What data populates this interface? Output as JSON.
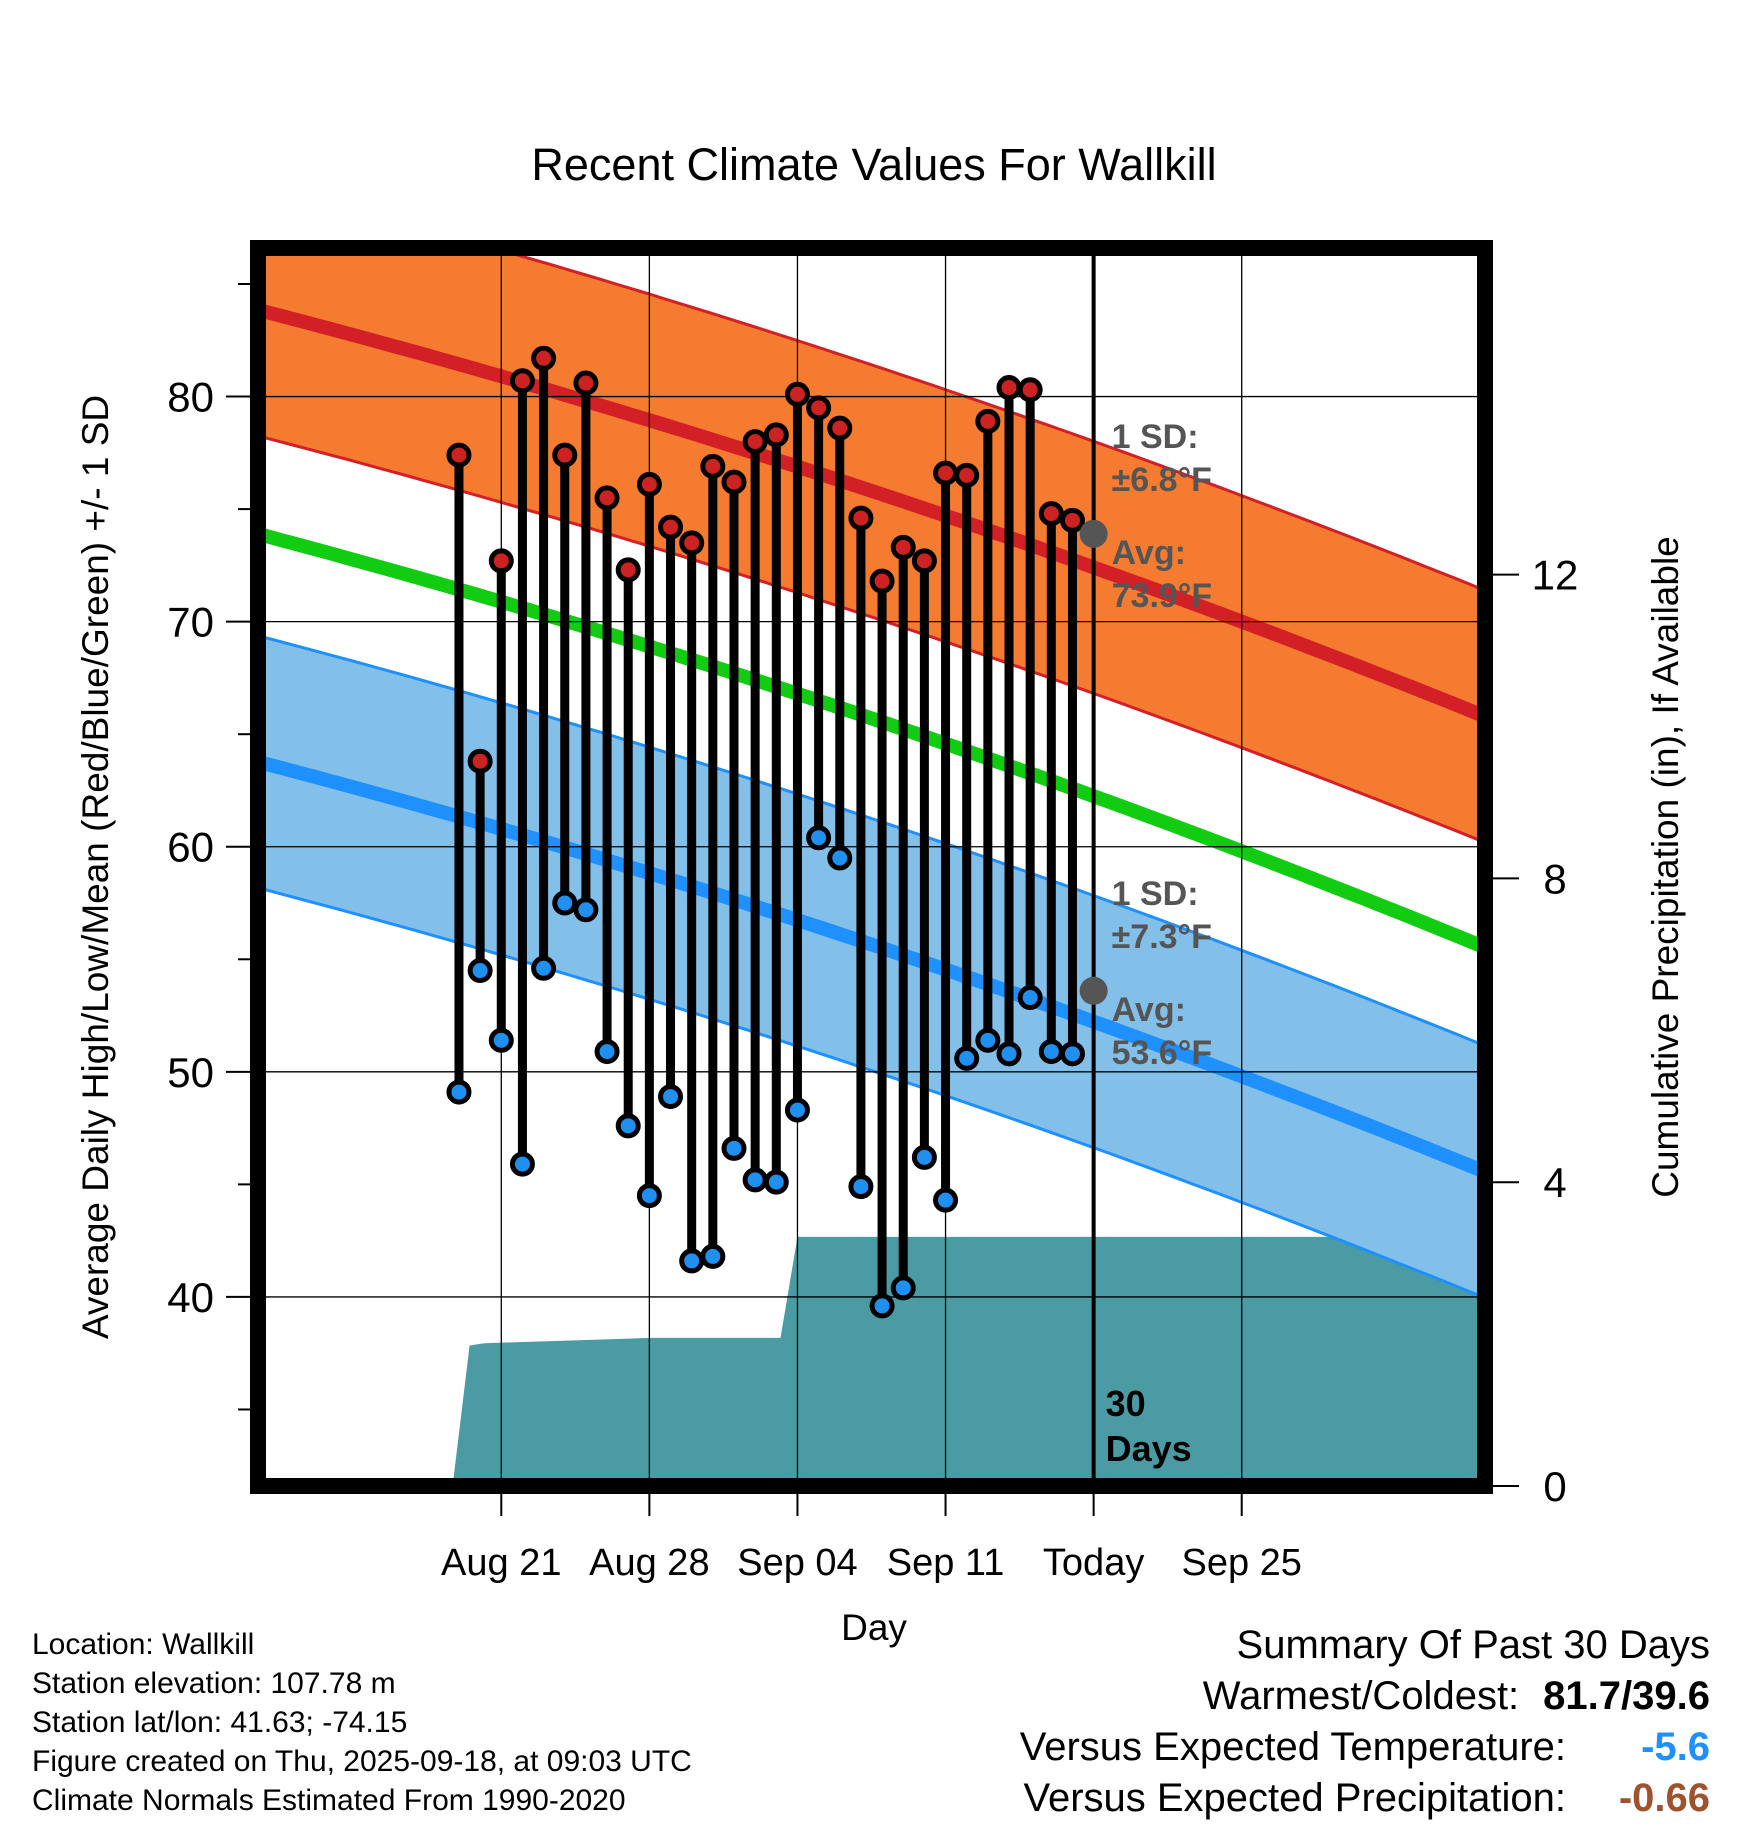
{
  "colors": {
    "high_band": "#F47B30",
    "high_line": "#D32027",
    "low_band": "#83C0E9",
    "low_line": "#1E90FF",
    "mean_line": "#11CC11",
    "precip": "#4A9BA3",
    "high_dot": "#CC2222",
    "low_dot": "#2090F0",
    "annotation": "#555555",
    "temp_anomaly": "#1E90FF",
    "precip_anomaly": "#A0522D"
  },
  "chart_data": {
    "type": "line",
    "title": "Recent Climate Values For Wallkill",
    "xlabel": "Day",
    "ylabel": "Average Daily High/Low/Mean (Red/Blue/Green) +/- 1 SD",
    "y2label": "Cumulative Precipitation (in), If Available",
    "xlim": [
      -3.5,
      54.5
    ],
    "ylim": [
      31.6,
      86.6
    ],
    "y2lim": [
      0,
      16.3
    ],
    "yticks": [
      40,
      50,
      60,
      70,
      80
    ],
    "y2ticks": [
      0,
      4,
      8,
      12
    ],
    "xticks": [
      {
        "x": 8,
        "label": "Aug 21"
      },
      {
        "x": 15,
        "label": "Aug 28"
      },
      {
        "x": 22,
        "label": "Sep 04"
      },
      {
        "x": 29,
        "label": "Sep 11"
      },
      {
        "x": 36,
        "label": "Today"
      },
      {
        "x": 43,
        "label": "Sep 25"
      }
    ],
    "today_x": 36,
    "period_label": [
      "30",
      "Days"
    ],
    "normals": {
      "x": [
        5,
        43
      ],
      "high_avg": [
        81.7,
        70.0
      ],
      "high_sd": 5.6,
      "low_avg": [
        61.6,
        49.8
      ],
      "low_sd": 5.6,
      "mean_avg": [
        71.7,
        59.8
      ]
    },
    "annotations": {
      "high": {
        "sd_label": "1 SD:",
        "sd_value": "±6.8°F",
        "avg_label": "Avg:",
        "avg_value": "73.9°F",
        "avg": 73.9
      },
      "low": {
        "sd_label": "1 SD:",
        "sd_value": "±7.3°F",
        "avg_label": "Avg:",
        "avg_value": "53.6°F",
        "avg": 53.6
      }
    },
    "daily": {
      "x": [
        6,
        7,
        8,
        9,
        10,
        11,
        12,
        13,
        14,
        15,
        16,
        17,
        18,
        19,
        20,
        21,
        22,
        23,
        24,
        25,
        26,
        27,
        28,
        29,
        30,
        31,
        32,
        33,
        34,
        35
      ],
      "high": [
        77.4,
        63.8,
        72.7,
        80.7,
        81.7,
        77.4,
        80.6,
        75.5,
        72.3,
        76.1,
        74.2,
        73.5,
        76.9,
        76.2,
        78.0,
        78.3,
        80.1,
        79.5,
        78.6,
        74.6,
        71.8,
        73.3,
        72.7,
        76.6,
        76.5,
        78.9,
        80.4,
        80.3,
        74.8,
        74.5
      ],
      "low": [
        49.1,
        54.5,
        51.4,
        45.9,
        54.6,
        57.5,
        57.2,
        50.9,
        47.6,
        44.5,
        48.9,
        41.6,
        41.8,
        46.6,
        45.2,
        45.1,
        48.3,
        60.4,
        59.5,
        44.9,
        39.6,
        40.4,
        46.2,
        44.3,
        50.6,
        51.4,
        50.8,
        53.3,
        50.9,
        50.8
      ]
    },
    "precip": {
      "x": [
        5.7,
        6.5,
        7.2,
        15.0,
        21.2,
        22.0,
        54.5
      ],
      "cumulative": [
        0,
        1.85,
        1.88,
        1.95,
        1.95,
        3.28,
        3.28
      ]
    }
  },
  "footer": {
    "location": "Location: Wallkill",
    "elevation": "Station elevation: 107.78 m",
    "latlon": "Station lat/lon: 41.63; -74.15",
    "created": "Figure created on Thu, 2025-09-18, at 09:03 UTC",
    "normals": "Climate Normals Estimated From 1990-2020"
  },
  "summary": {
    "title": "Summary Of Past 30 Days",
    "warmest_label": "Warmest/Coldest:",
    "warmest_value": "81.7/39.6",
    "temp_label": "Versus Expected Temperature:",
    "temp_value": "-5.6",
    "precip_label": "Versus Expected Precipitation:",
    "precip_value": "-0.66"
  }
}
